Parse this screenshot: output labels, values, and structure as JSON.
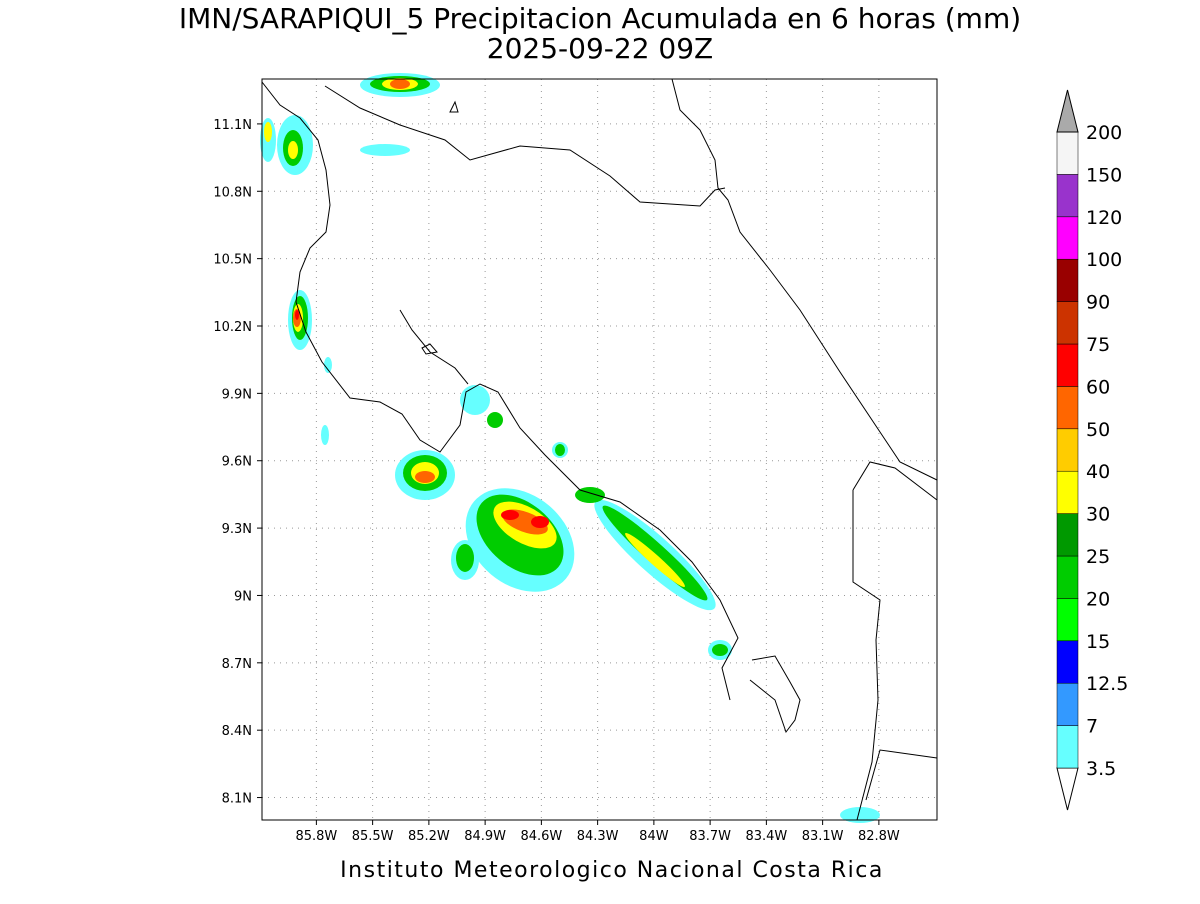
{
  "chart_data": {
    "type": "map",
    "title": "IMN/SARAPIQUI_5 Precipitacion Acumulada en 6 horas (mm)",
    "subtitle": "2025-09-22 09Z",
    "footer": "Instituto Meteorologico Nacional Costa Rica",
    "xlim": [
      -86.09,
      -82.49
    ],
    "ylim": [
      8.0,
      11.3
    ],
    "xticks": [
      {
        "value": -85.8,
        "label": "85.8W"
      },
      {
        "value": -85.5,
        "label": "85.5W"
      },
      {
        "value": -85.2,
        "label": "85.2W"
      },
      {
        "value": -84.9,
        "label": "84.9W"
      },
      {
        "value": -84.6,
        "label": "84.6W"
      },
      {
        "value": -84.3,
        "label": "84.3W"
      },
      {
        "value": -84.0,
        "label": "84W"
      },
      {
        "value": -83.7,
        "label": "83.7W"
      },
      {
        "value": -83.4,
        "label": "83.4W"
      },
      {
        "value": -83.1,
        "label": "83.1W"
      },
      {
        "value": -82.8,
        "label": "82.8W"
      }
    ],
    "yticks": [
      {
        "value": 8.1,
        "label": "8.1N"
      },
      {
        "value": 8.4,
        "label": "8.4N"
      },
      {
        "value": 8.7,
        "label": "8.7N"
      },
      {
        "value": 9.0,
        "label": "9N"
      },
      {
        "value": 9.3,
        "label": "9.3N"
      },
      {
        "value": 9.6,
        "label": "9.6N"
      },
      {
        "value": 9.9,
        "label": "9.9N"
      },
      {
        "value": 10.2,
        "label": "10.2N"
      },
      {
        "value": 10.5,
        "label": "10.5N"
      },
      {
        "value": 10.8,
        "label": "10.8N"
      },
      {
        "value": 11.1,
        "label": "11.1N"
      }
    ],
    "grid": true,
    "colorbar": {
      "levels": [
        3.5,
        7,
        12.5,
        15,
        20,
        25,
        30,
        40,
        50,
        60,
        75,
        90,
        100,
        120,
        150,
        200
      ],
      "colors": [
        "#ffffff",
        "#66ffff",
        "#3399ff",
        "#0000ff",
        "#00ff00",
        "#00cc00",
        "#009900",
        "#ffff00",
        "#ffcc00",
        "#ff6600",
        "#ff0000",
        "#cc3300",
        "#990000",
        "#ff00ff",
        "#9933cc",
        "#f5f5f5",
        "#aaaaaa"
      ]
    }
  }
}
